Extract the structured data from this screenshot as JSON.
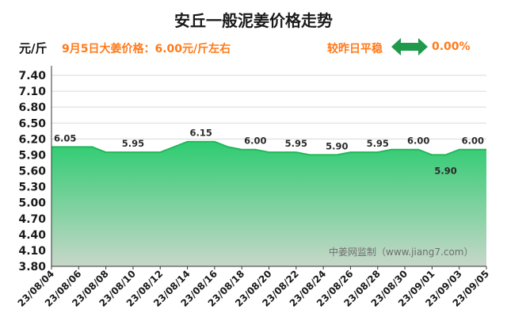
{
  "header": {
    "title": "安丘一般泥姜价格走势",
    "unit": "元/斤",
    "price_note": "9月5日大姜价格：6.00元/斤左右",
    "compare_label": "较昨日平稳",
    "change": "0.00%"
  },
  "watermark": "中姜网监制（www.jiang7.com）",
  "icons": {
    "compare": "double-arrow-icon"
  },
  "colors": {
    "accent": "#ff7a1a",
    "fill_top": "#2ecc71",
    "fill_bottom": "#c7d7c9",
    "line": "#22b85a",
    "arrow": "#1f9a4a"
  },
  "chart_data": {
    "type": "area",
    "title": "安丘一般泥姜价格走势",
    "ylabel": "元/斤",
    "ylim": [
      3.8,
      7.4
    ],
    "yticks": [
      "7.40",
      "7.10",
      "6.80",
      "6.50",
      "6.20",
      "5.90",
      "5.60",
      "5.30",
      "5.00",
      "4.70",
      "4.40",
      "4.10",
      "3.80"
    ],
    "xtick_labels": [
      "23/08/04",
      "23/08/06",
      "23/08/08",
      "23/08/10",
      "23/08/12",
      "23/08/14",
      "23/08/16",
      "23/08/18",
      "23/08/20",
      "23/08/22",
      "23/08/24",
      "23/08/26",
      "23/08/28",
      "23/08/30",
      "23/09/01",
      "23/09/03",
      "23/09/05"
    ],
    "grid": true,
    "points": [
      {
        "date": "23/08/04",
        "y": 6.05
      },
      {
        "date": "23/08/05",
        "y": 6.05
      },
      {
        "date": "23/08/06",
        "y": 6.05
      },
      {
        "date": "23/08/07",
        "y": 6.05
      },
      {
        "date": "23/08/08",
        "y": 5.95
      },
      {
        "date": "23/08/09",
        "y": 5.95
      },
      {
        "date": "23/08/10",
        "y": 5.95
      },
      {
        "date": "23/08/11",
        "y": 5.95
      },
      {
        "date": "23/08/12",
        "y": 5.95
      },
      {
        "date": "23/08/13",
        "y": 6.05
      },
      {
        "date": "23/08/14",
        "y": 6.15
      },
      {
        "date": "23/08/15",
        "y": 6.15
      },
      {
        "date": "23/08/16",
        "y": 6.15
      },
      {
        "date": "23/08/17",
        "y": 6.05
      },
      {
        "date": "23/08/18",
        "y": 6.0
      },
      {
        "date": "23/08/19",
        "y": 6.0
      },
      {
        "date": "23/08/20",
        "y": 5.95
      },
      {
        "date": "23/08/21",
        "y": 5.95
      },
      {
        "date": "23/08/22",
        "y": 5.95
      },
      {
        "date": "23/08/23",
        "y": 5.9
      },
      {
        "date": "23/08/24",
        "y": 5.9
      },
      {
        "date": "23/08/25",
        "y": 5.9
      },
      {
        "date": "23/08/26",
        "y": 5.95
      },
      {
        "date": "23/08/27",
        "y": 5.95
      },
      {
        "date": "23/08/28",
        "y": 5.95
      },
      {
        "date": "23/08/29",
        "y": 6.0
      },
      {
        "date": "23/08/30",
        "y": 6.0
      },
      {
        "date": "23/08/31",
        "y": 6.0
      },
      {
        "date": "23/09/01",
        "y": 5.9
      },
      {
        "date": "23/09/02",
        "y": 5.9
      },
      {
        "date": "23/09/03",
        "y": 6.0
      },
      {
        "date": "23/09/04",
        "y": 6.0
      },
      {
        "date": "23/09/05",
        "y": 6.0
      }
    ],
    "data_labels": [
      {
        "date": "23/08/05",
        "text": "6.05"
      },
      {
        "date": "23/08/10",
        "text": "5.95"
      },
      {
        "date": "23/08/15",
        "text": "6.15"
      },
      {
        "date": "23/08/19",
        "text": "6.00"
      },
      {
        "date": "23/08/22",
        "text": "5.95"
      },
      {
        "date": "23/08/25",
        "text": "5.90"
      },
      {
        "date": "23/08/28",
        "text": "5.95"
      },
      {
        "date": "23/08/31",
        "text": "6.00"
      },
      {
        "date": "23/09/02",
        "text": "5.90",
        "below": true
      },
      {
        "date": "23/09/04",
        "text": "6.00"
      }
    ]
  }
}
